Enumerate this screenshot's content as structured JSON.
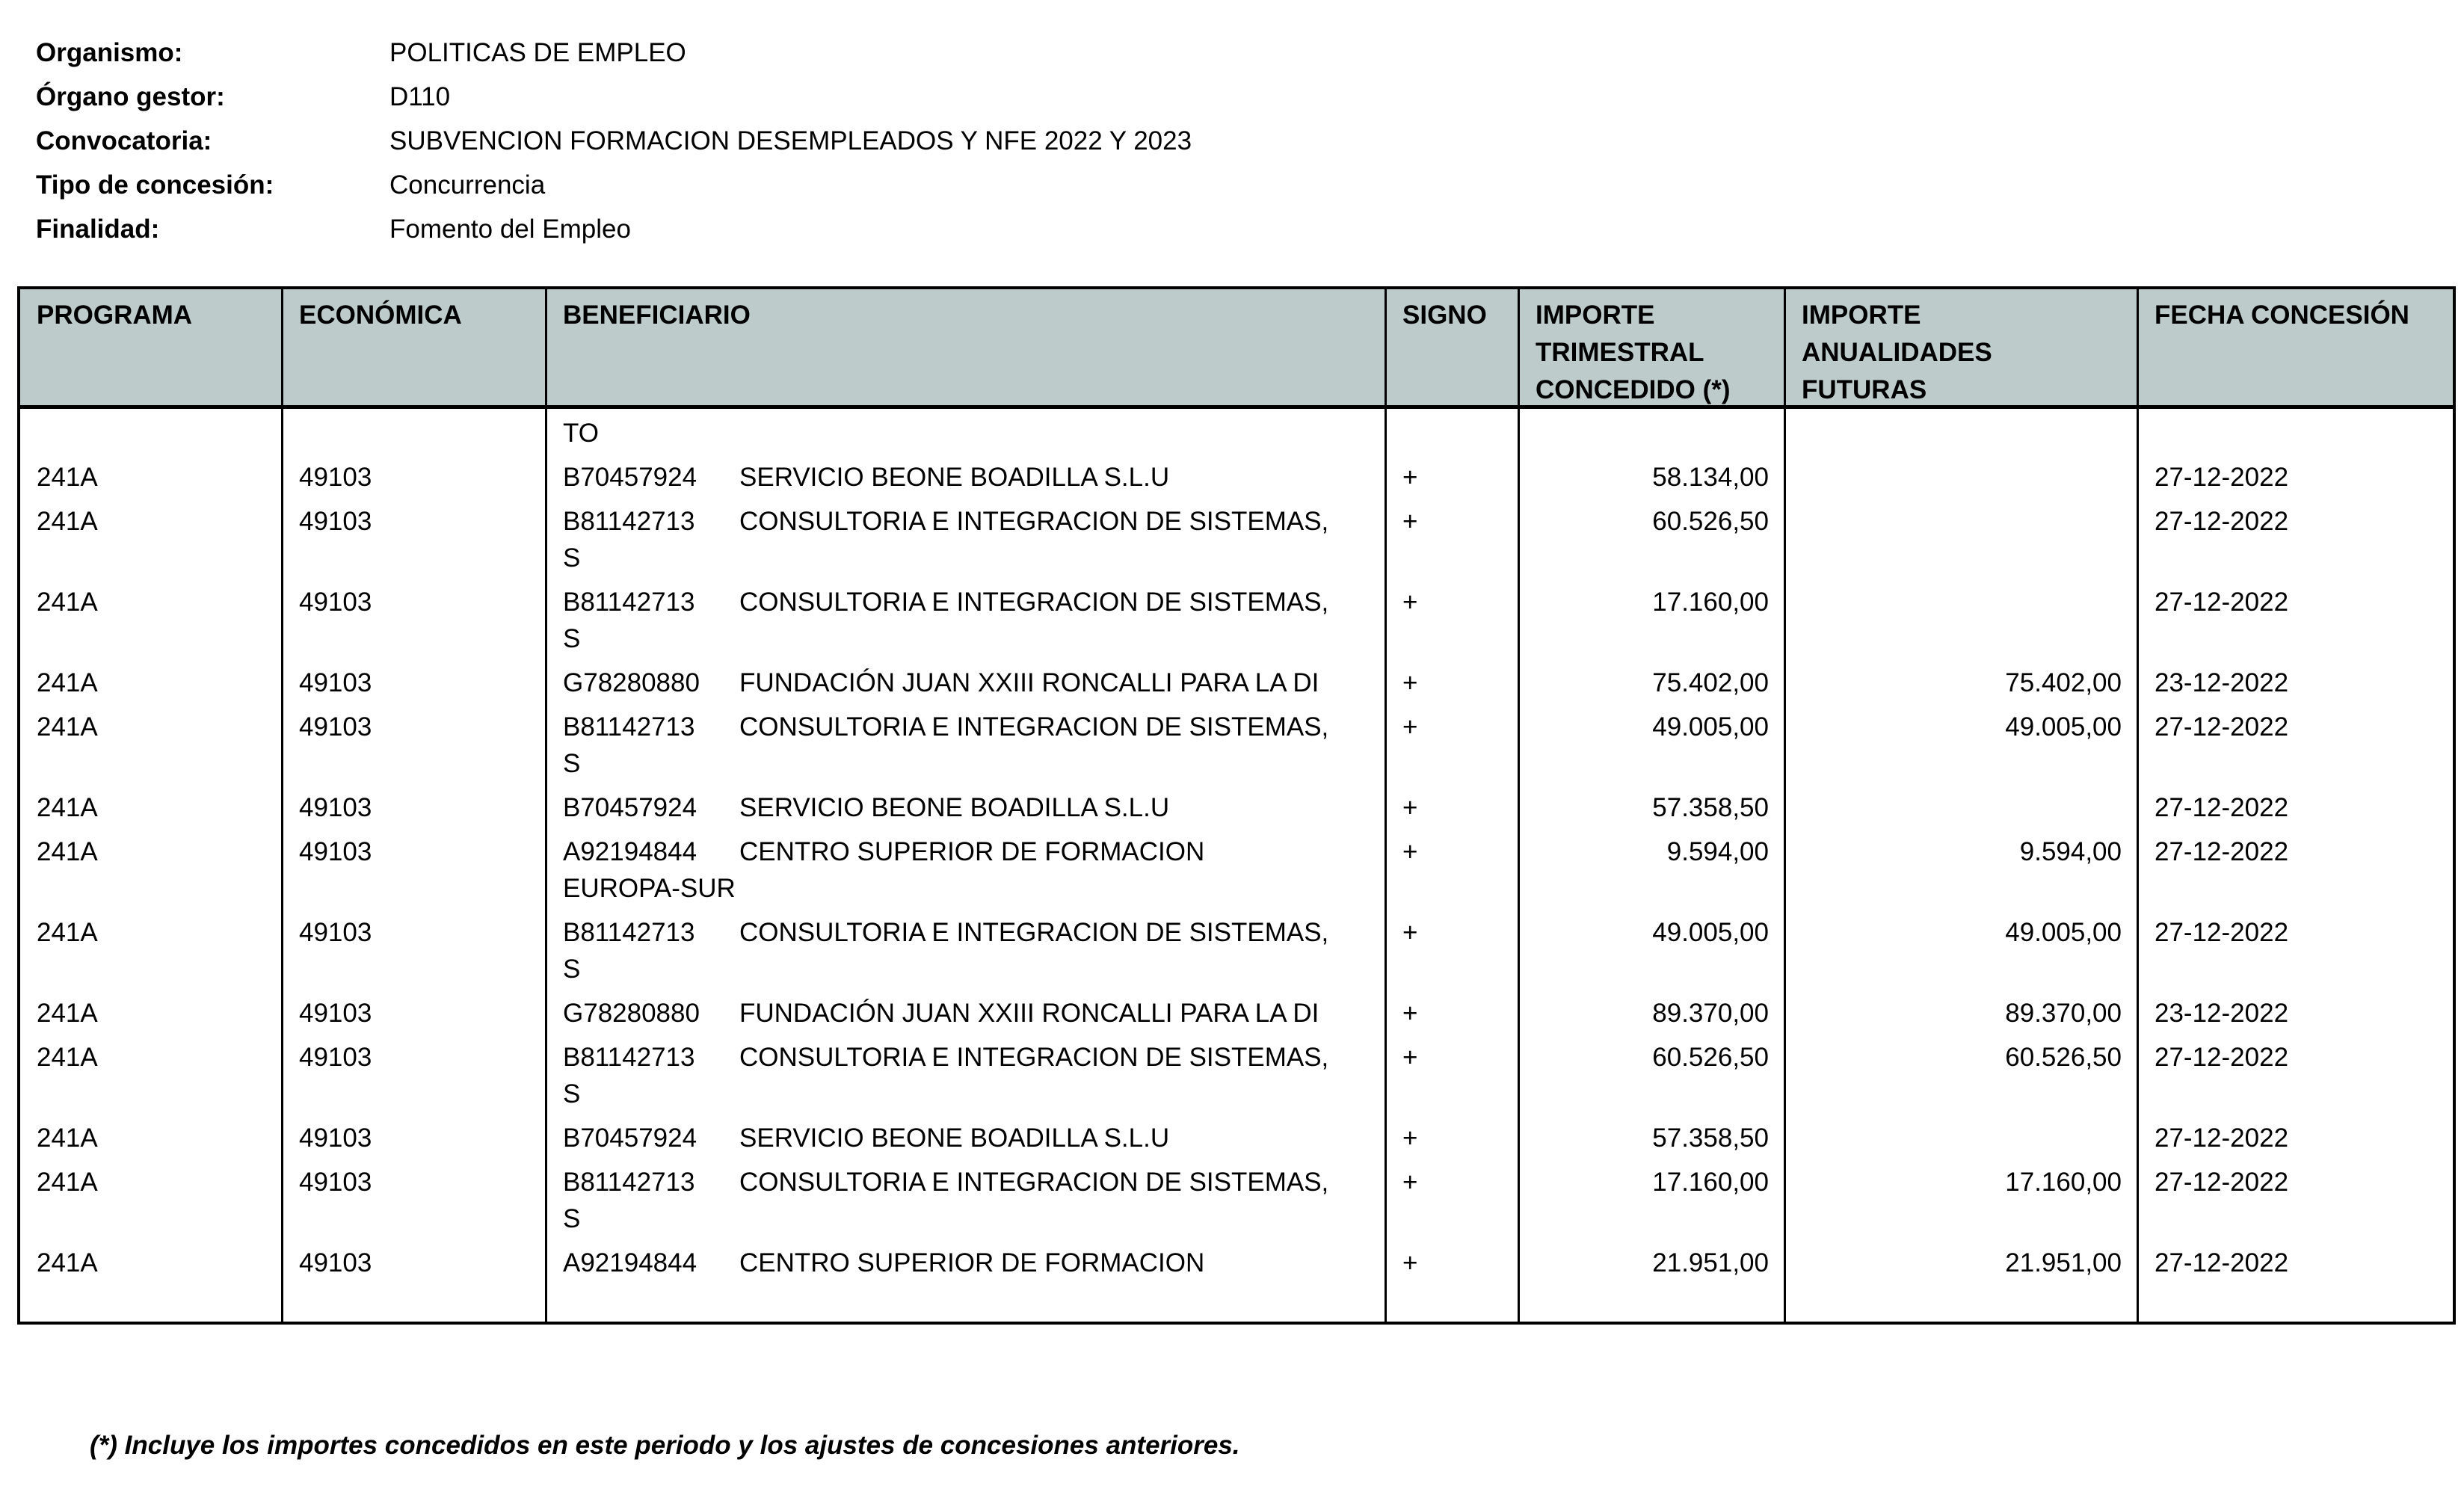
{
  "meta": [
    {
      "label": "Organismo:",
      "value": "POLITICAS DE EMPLEO"
    },
    {
      "label": "Órgano gestor:",
      "value": "D110"
    },
    {
      "label": "Convocatoria:",
      "value": "SUBVENCION FORMACION DESEMPLEADOS Y NFE 2022 Y 2023"
    },
    {
      "label": "Tipo de concesión:",
      "value": "Concurrencia"
    },
    {
      "label": "Finalidad:",
      "value": "Fomento del Empleo"
    }
  ],
  "table": {
    "header_bg": "#bdcbcb",
    "columns": [
      "PROGRAMA",
      "ECONÓMICA",
      "BENEFICIARIO",
      "SIGNO",
      "IMPORTE\nTRIMESTRAL\nCONCEDIDO (*)",
      "IMPORTE\nANUALIDADES\nFUTURAS",
      "FECHA CONCESIÓN"
    ],
    "continuation": "TO",
    "rows": [
      {
        "programa": "241A",
        "economica": "49103",
        "cif": "B70457924",
        "nombre": "SERVICIO BEONE BOADILLA S.L.U",
        "signo": "+",
        "importe": "58.134,00",
        "futuras": "",
        "fecha": "27-12-2022"
      },
      {
        "programa": "241A",
        "economica": "49103",
        "cif": "B81142713",
        "nombre": "CONSULTORIA E INTEGRACION DE SISTEMAS,\nS",
        "signo": "+",
        "importe": "60.526,50",
        "futuras": "",
        "fecha": "27-12-2022"
      },
      {
        "programa": "241A",
        "economica": "49103",
        "cif": "B81142713",
        "nombre": "CONSULTORIA E INTEGRACION DE SISTEMAS,\nS",
        "signo": "+",
        "importe": "17.160,00",
        "futuras": "",
        "fecha": "27-12-2022"
      },
      {
        "programa": "241A",
        "economica": "49103",
        "cif": "G78280880",
        "nombre": "FUNDACIÓN JUAN XXIII RONCALLI PARA LA DI",
        "signo": "+",
        "importe": "75.402,00",
        "futuras": "75.402,00",
        "fecha": "23-12-2022"
      },
      {
        "programa": "241A",
        "economica": "49103",
        "cif": "B81142713",
        "nombre": "CONSULTORIA E INTEGRACION DE SISTEMAS,\nS",
        "signo": "+",
        "importe": "49.005,00",
        "futuras": "49.005,00",
        "fecha": "27-12-2022"
      },
      {
        "programa": "241A",
        "economica": "49103",
        "cif": "B70457924",
        "nombre": "SERVICIO BEONE BOADILLA S.L.U",
        "signo": "+",
        "importe": "57.358,50",
        "futuras": "",
        "fecha": "27-12-2022"
      },
      {
        "programa": "241A",
        "economica": "49103",
        "cif": "A92194844",
        "nombre": "CENTRO SUPERIOR DE FORMACION\nEUROPA-SUR",
        "signo": "+",
        "importe": "9.594,00",
        "futuras": "9.594,00",
        "fecha": "27-12-2022"
      },
      {
        "programa": "241A",
        "economica": "49103",
        "cif": "B81142713",
        "nombre": "CONSULTORIA E INTEGRACION DE SISTEMAS,\nS",
        "signo": "+",
        "importe": "49.005,00",
        "futuras": "49.005,00",
        "fecha": "27-12-2022"
      },
      {
        "programa": "241A",
        "economica": "49103",
        "cif": "G78280880",
        "nombre": "FUNDACIÓN JUAN XXIII RONCALLI PARA LA DI",
        "signo": "+",
        "importe": "89.370,00",
        "futuras": "89.370,00",
        "fecha": "23-12-2022"
      },
      {
        "programa": "241A",
        "economica": "49103",
        "cif": "B81142713",
        "nombre": "CONSULTORIA E INTEGRACION DE SISTEMAS,\nS",
        "signo": "+",
        "importe": "60.526,50",
        "futuras": "60.526,50",
        "fecha": "27-12-2022"
      },
      {
        "programa": "241A",
        "economica": "49103",
        "cif": "B70457924",
        "nombre": "SERVICIO BEONE BOADILLA S.L.U",
        "signo": "+",
        "importe": "57.358,50",
        "futuras": "",
        "fecha": "27-12-2022"
      },
      {
        "programa": "241A",
        "economica": "49103",
        "cif": "B81142713",
        "nombre": "CONSULTORIA E INTEGRACION DE SISTEMAS,\nS",
        "signo": "+",
        "importe": "17.160,00",
        "futuras": "17.160,00",
        "fecha": "27-12-2022"
      },
      {
        "programa": "241A",
        "economica": "49103",
        "cif": "A92194844",
        "nombre": "CENTRO SUPERIOR DE FORMACION",
        "signo": "+",
        "importe": "21.951,00",
        "futuras": "21.951,00",
        "fecha": "27-12-2022"
      }
    ]
  },
  "footnote": "(*) Incluye los importes concedidos en este periodo y los ajustes de concesiones anteriores."
}
